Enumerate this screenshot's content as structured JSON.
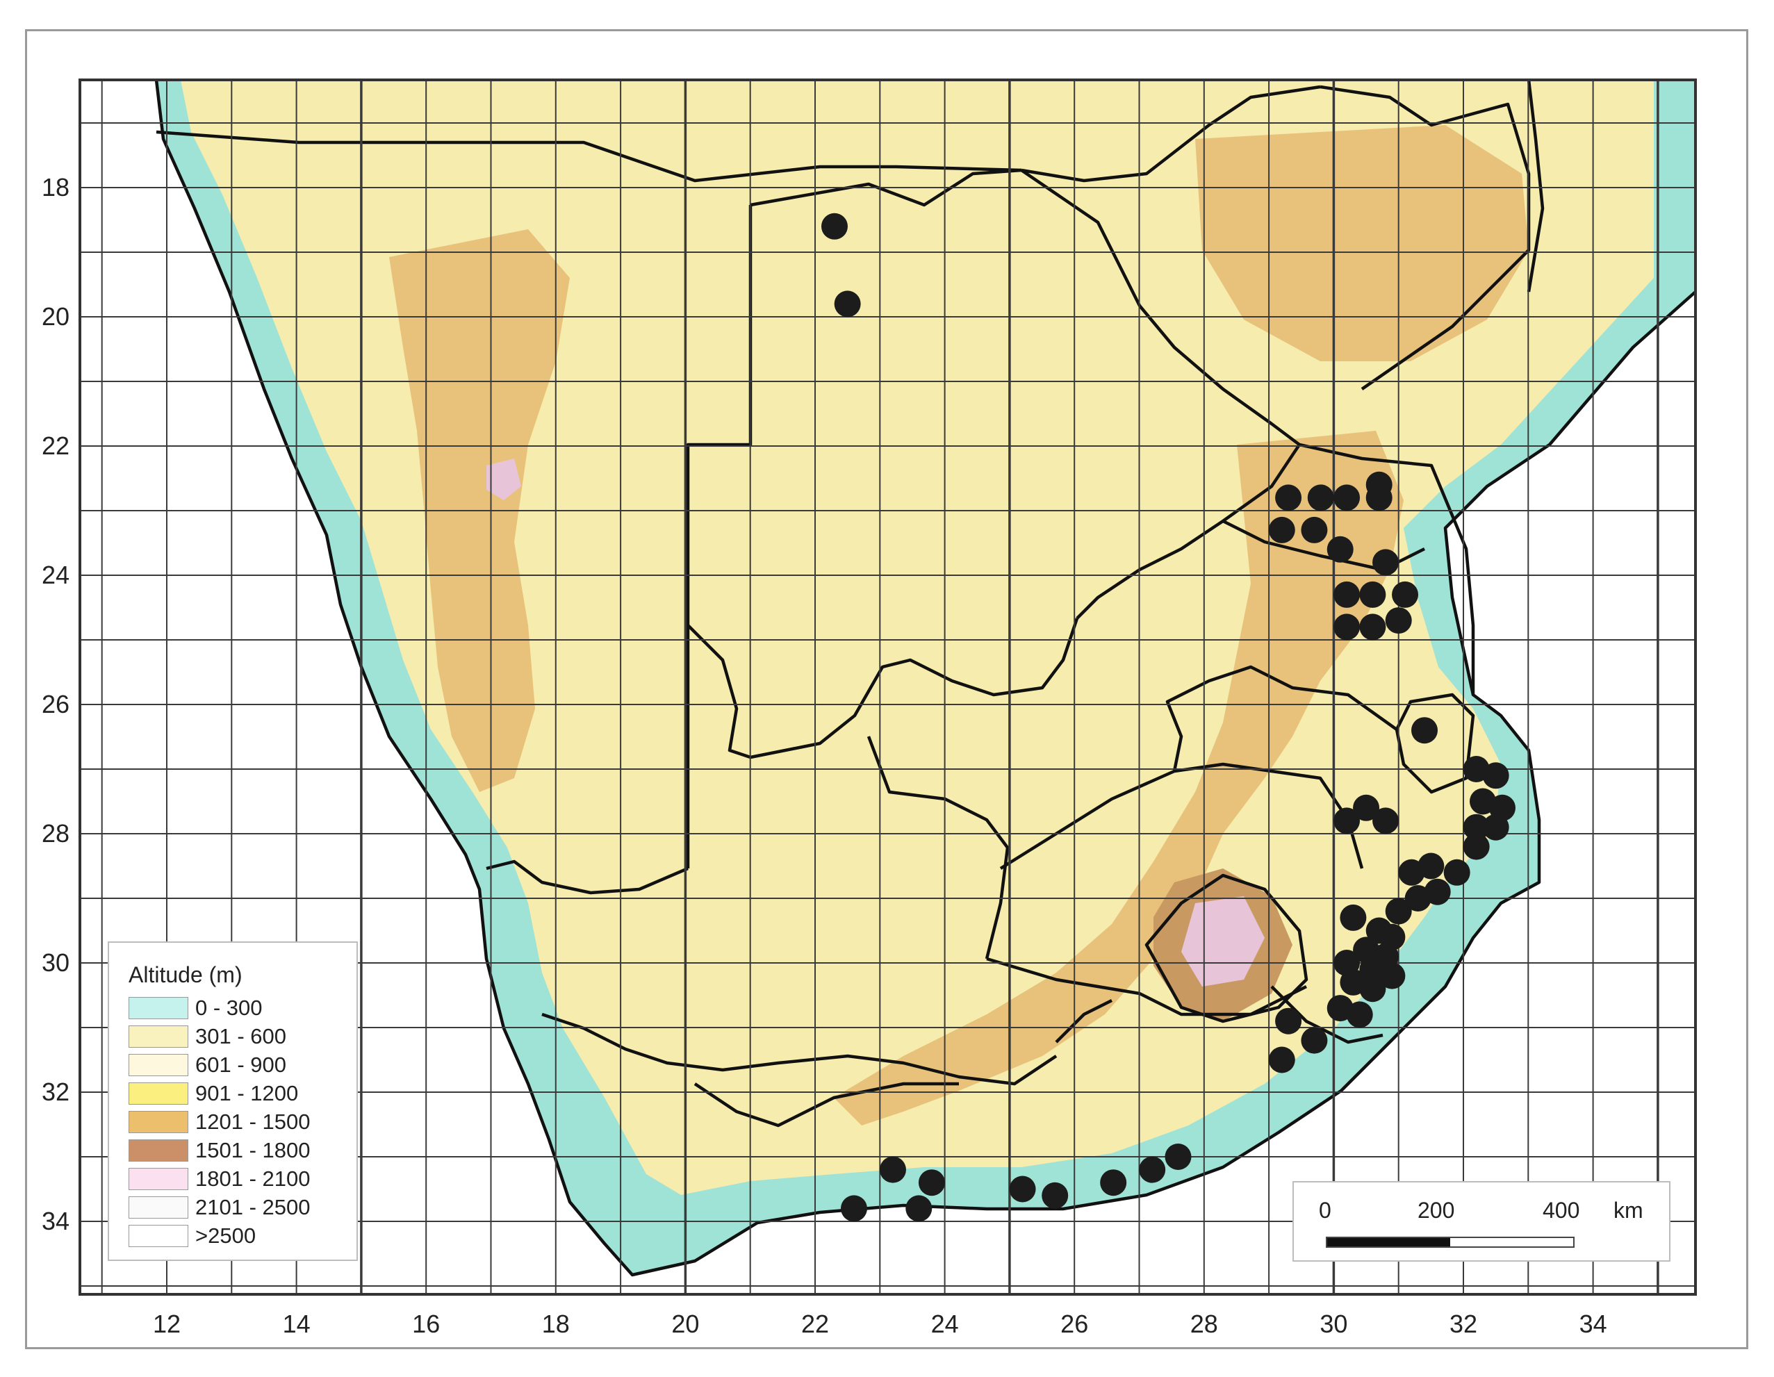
{
  "map": {
    "x_ticks": [
      "12",
      "14",
      "16",
      "18",
      "20",
      "22",
      "24",
      "26",
      "28",
      "30",
      "32",
      "34"
    ],
    "y_ticks": [
      "18",
      "20",
      "22",
      "24",
      "26",
      "28",
      "30",
      "32",
      "34"
    ],
    "colors": {
      "ocean": "#ffffff",
      "lowland": "#9fe3d6",
      "plateau": "#f5ecad",
      "highland": "#e8c27a",
      "mountain": "#c89a62",
      "peaks": "#e8c4d8",
      "borders": "#111111",
      "grid": "#3a3a3a",
      "occurrence_dots": "#1c1c1c"
    },
    "occurrences_lon_lat": [
      [
        22.3,
        18.6
      ],
      [
        22.5,
        19.8
      ],
      [
        29.3,
        22.8
      ],
      [
        29.8,
        22.8
      ],
      [
        30.2,
        22.8
      ],
      [
        30.7,
        22.6
      ],
      [
        30.7,
        22.8
      ],
      [
        29.2,
        23.3
      ],
      [
        29.7,
        23.3
      ],
      [
        30.1,
        23.6
      ],
      [
        30.8,
        23.8
      ],
      [
        30.2,
        24.3
      ],
      [
        30.6,
        24.3
      ],
      [
        31.1,
        24.3
      ],
      [
        30.2,
        24.8
      ],
      [
        30.6,
        24.8
      ],
      [
        31.0,
        24.7
      ],
      [
        31.4,
        26.4
      ],
      [
        32.2,
        27.0
      ],
      [
        32.5,
        27.1
      ],
      [
        32.3,
        27.5
      ],
      [
        32.6,
        27.6
      ],
      [
        32.2,
        27.9
      ],
      [
        32.5,
        27.9
      ],
      [
        30.2,
        27.8
      ],
      [
        30.5,
        27.6
      ],
      [
        30.8,
        27.8
      ],
      [
        32.2,
        28.2
      ],
      [
        31.9,
        28.6
      ],
      [
        31.5,
        28.5
      ],
      [
        31.2,
        28.6
      ],
      [
        31.6,
        28.9
      ],
      [
        31.3,
        29.0
      ],
      [
        31.0,
        29.2
      ],
      [
        30.3,
        29.3
      ],
      [
        30.7,
        29.5
      ],
      [
        30.9,
        29.6
      ],
      [
        30.5,
        29.8
      ],
      [
        30.8,
        29.9
      ],
      [
        30.2,
        30.0
      ],
      [
        30.6,
        30.1
      ],
      [
        30.9,
        30.2
      ],
      [
        30.3,
        30.3
      ],
      [
        30.6,
        30.4
      ],
      [
        30.1,
        30.7
      ],
      [
        30.4,
        30.8
      ],
      [
        29.3,
        30.9
      ],
      [
        29.7,
        31.2
      ],
      [
        29.2,
        31.5
      ],
      [
        27.6,
        33.0
      ],
      [
        27.2,
        33.2
      ],
      [
        26.6,
        33.4
      ],
      [
        25.7,
        33.6
      ],
      [
        25.2,
        33.5
      ],
      [
        23.8,
        33.4
      ],
      [
        23.2,
        33.2
      ],
      [
        23.6,
        33.8
      ],
      [
        22.6,
        33.8
      ]
    ]
  },
  "legend": {
    "title": "Altitude (m)",
    "items": [
      {
        "label": "0 - 300",
        "color": "#c6f2ee"
      },
      {
        "label": "301 - 600",
        "color": "#faf2be"
      },
      {
        "label": "601 - 900",
        "color": "#fdf8de"
      },
      {
        "label": "901 - 1200",
        "color": "#fbf07f"
      },
      {
        "label": "1201 - 1500",
        "color": "#ecbf6c"
      },
      {
        "label": "1501 - 1800",
        "color": "#cc9068"
      },
      {
        "label": "1801 - 2100",
        "color": "#fbe0f0"
      },
      {
        "label": "2101 - 2500",
        "color": "#fafafa"
      },
      {
        "label": ">2500",
        "color": "#ffffff"
      }
    ]
  },
  "scalebar": {
    "label_0": "0",
    "label_200": "200",
    "label_400": "400",
    "unit": "km"
  }
}
